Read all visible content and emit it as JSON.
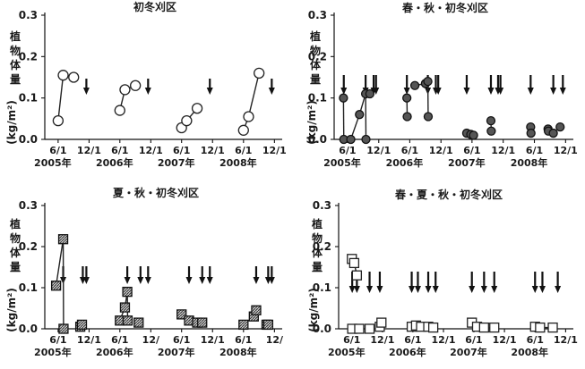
{
  "chart_data": [
    {
      "type": "line",
      "title": "初冬刈区",
      "ylabel": "植物体量",
      "yunit": "(kg/m²)",
      "ylim": [
        0,
        0.3
      ],
      "yticks": [
        "0.0",
        "0.1",
        "0.2",
        "0.3"
      ],
      "xtick_labels": [
        "6/1",
        "12/1",
        "6/1",
        "12/1",
        "6/1",
        "12/1",
        "6/1",
        "12/1"
      ],
      "years": [
        "2005年",
        "2006年",
        "2007年",
        "2008年"
      ],
      "marker_style": "open-circle",
      "series": [
        {
          "x": [
            "2005-06-01",
            "2005-07-01",
            "2005-09-01"
          ],
          "y": [
            0.045,
            0.155,
            0.15
          ]
        },
        {
          "x": [
            "2006-06-01",
            "2006-07-01",
            "2006-09-01"
          ],
          "y": [
            0.07,
            0.12,
            0.13
          ]
        },
        {
          "x": [
            "2007-06-01",
            "2007-07-01",
            "2007-09-01"
          ],
          "y": [
            0.028,
            0.045,
            0.075
          ]
        },
        {
          "x": [
            "2008-06-01",
            "2008-07-01",
            "2008-09-01"
          ],
          "y": [
            0.022,
            0.055,
            0.16
          ]
        }
      ],
      "cut_dates": [
        "2005-11-15",
        "2006-11-15",
        "2007-11-15",
        "2008-11-15"
      ]
    },
    {
      "type": "line",
      "title": "春・秋・初冬刈区",
      "ylabel": "植物体量",
      "yunit": "(kg/m²)",
      "ylim": [
        0,
        0.3
      ],
      "yticks": [
        "0.0",
        "0.1",
        "0.2",
        "0.3"
      ],
      "xtick_labels": [
        "6/1",
        "12/1",
        "6/1",
        "12/1",
        "6/1",
        "12/1",
        "6/1",
        "12/1"
      ],
      "years": [
        "2005年",
        "2006年",
        "2007年",
        "2008年"
      ],
      "marker_style": "filled-circle",
      "series": [
        {
          "x": [
            "2005-05-08",
            "2005-05-10"
          ],
          "y": [
            0.1,
            0.0
          ]
        },
        {
          "x": [
            "2005-06-20",
            "2005-08-10",
            "2005-09-15",
            "2005-09-17"
          ],
          "y": [
            0.0,
            0.06,
            0.11,
            0.0
          ]
        },
        {
          "x": [
            "2005-10-10"
          ],
          "y": [
            0.11
          ]
        },
        {
          "x": [
            "2006-05-15",
            "2006-05-17"
          ],
          "y": [
            0.1,
            0.055
          ]
        },
        {
          "x": [
            "2006-07-01",
            "2006-09-01"
          ],
          "y": [
            0.13,
            0.135
          ]
        },
        {
          "x": [
            "2006-09-15",
            "2006-09-17"
          ],
          "y": [
            0.14,
            0.055
          ]
        },
        {
          "x": [
            "2007-05-01",
            "2007-05-25",
            "2007-06-10"
          ],
          "y": [
            0.015,
            0.012,
            0.01
          ]
        },
        {
          "x": [
            "2007-09-20",
            "2007-09-22"
          ],
          "y": [
            0.045,
            0.02
          ]
        },
        {
          "x": [
            "2008-05-10",
            "2008-05-12"
          ],
          "y": [
            0.03,
            0.015
          ]
        },
        {
          "x": [
            "2008-08-20",
            "2008-08-22",
            "2008-09-20"
          ],
          "y": [
            0.025,
            0.02,
            0.015
          ]
        },
        {
          "x": [
            "2008-10-30"
          ],
          "y": [
            0.03
          ]
        }
      ],
      "cut_dates": [
        "2005-05-10",
        "2005-09-15",
        "2005-11-01",
        "2005-11-15",
        "2006-05-15",
        "2006-09-15",
        "2006-11-01",
        "2006-11-15",
        "2007-05-01",
        "2007-09-20",
        "2007-11-01",
        "2007-11-15",
        "2008-05-10",
        "2008-09-20",
        "2008-11-15"
      ]
    },
    {
      "type": "line",
      "title": "夏・秋・初冬刈区",
      "ylabel": "植物体量",
      "yunit": "(kg/m²)",
      "ylim": [
        0,
        0.3
      ],
      "yticks": [
        "0.0",
        "0.1",
        "0.2",
        "0.3"
      ],
      "xtick_labels": [
        "6/1",
        "12/1",
        "6/1",
        "12/",
        "6/1",
        "12/1",
        "6/1",
        "12/"
      ],
      "years": [
        "2005年",
        "2006年",
        "2007年",
        "2008年"
      ],
      "marker_style": "hatched-square",
      "series": [
        {
          "x": [
            "2005-05-20",
            "2005-07-01",
            "2005-07-03"
          ],
          "y": [
            0.105,
            0.218,
            0.0
          ]
        },
        {
          "x": [
            "2005-10-10",
            "2005-10-20"
          ],
          "y": [
            0.005,
            0.01
          ]
        },
        {
          "x": [
            "2006-06-01",
            "2006-07-01",
            "2006-07-15",
            "2006-07-17"
          ],
          "y": [
            0.02,
            0.052,
            0.09,
            0.02
          ]
        },
        {
          "x": [
            "2006-09-20"
          ],
          "y": [
            0.015
          ]
        },
        {
          "x": [
            "2007-06-01",
            "2007-07-15"
          ],
          "y": [
            0.035,
            0.02
          ]
        },
        {
          "x": [
            "2007-09-01",
            "2007-10-01"
          ],
          "y": [
            0.015,
            0.015
          ]
        },
        {
          "x": [
            "2008-06-01",
            "2008-08-01"
          ],
          "y": [
            0.01,
            0.03
          ]
        },
        {
          "x": [
            "2008-08-15"
          ],
          "y": [
            0.045
          ]
        },
        {
          "x": [
            "2008-10-15",
            "2008-10-25"
          ],
          "y": [
            0.01,
            0.01
          ]
        }
      ],
      "cut_dates": [
        "2005-07-01",
        "2005-10-25",
        "2005-11-15",
        "2006-07-15",
        "2006-10-01",
        "2006-11-15",
        "2007-07-15",
        "2007-10-01",
        "2007-11-15",
        "2008-08-15",
        "2008-10-25",
        "2008-11-15"
      ]
    },
    {
      "type": "line",
      "title": "春・夏・秋・初冬刈区",
      "ylabel": "植物体量",
      "yunit": "(kg/m²)",
      "ylim": [
        0,
        0.3
      ],
      "yticks": [
        "0.0",
        "0.1",
        "0.2",
        "0.3"
      ],
      "xtick_labels": [
        "6/1",
        "12/1",
        "6/1",
        "12/1",
        "6/1",
        "12/1",
        "6/1",
        "12/1"
      ],
      "years": [
        "2005年",
        "2006年",
        "2007年",
        "2008年"
      ],
      "marker_style": "open-square",
      "series": [
        {
          "x": [
            "2005-06-01",
            "2005-06-15",
            "2005-07-01"
          ],
          "y": [
            0.17,
            0.16,
            0.13
          ]
        },
        {
          "x": [
            "2005-06-03",
            "2005-07-15",
            "2005-09-15"
          ],
          "y": [
            0.0,
            0.0,
            0.0
          ]
        },
        {
          "x": [
            "2005-11-15",
            "2005-11-25"
          ],
          "y": [
            0.005,
            0.015
          ]
        },
        {
          "x": [
            "2006-05-25",
            "2006-06-20",
            "2006-07-20",
            "2006-09-01",
            "2006-10-01"
          ],
          "y": [
            0.005,
            0.008,
            0.005,
            0.005,
            0.003
          ]
        },
        {
          "x": [
            "2007-05-20",
            "2007-06-20",
            "2007-08-01",
            "2007-10-01"
          ],
          "y": [
            0.015,
            0.005,
            0.003,
            0.003
          ]
        },
        {
          "x": [
            "2008-06-01",
            "2008-07-01",
            "2008-09-15"
          ],
          "y": [
            0.005,
            0.003,
            0.003
          ]
        }
      ],
      "cut_dates": [
        "2005-06-03",
        "2005-07-01",
        "2005-09-15",
        "2005-11-15",
        "2006-05-25",
        "2006-07-01",
        "2006-09-01",
        "2006-10-15",
        "2007-05-20",
        "2007-08-01",
        "2007-10-01",
        "2008-06-01",
        "2008-07-15",
        "2008-10-15"
      ]
    }
  ]
}
